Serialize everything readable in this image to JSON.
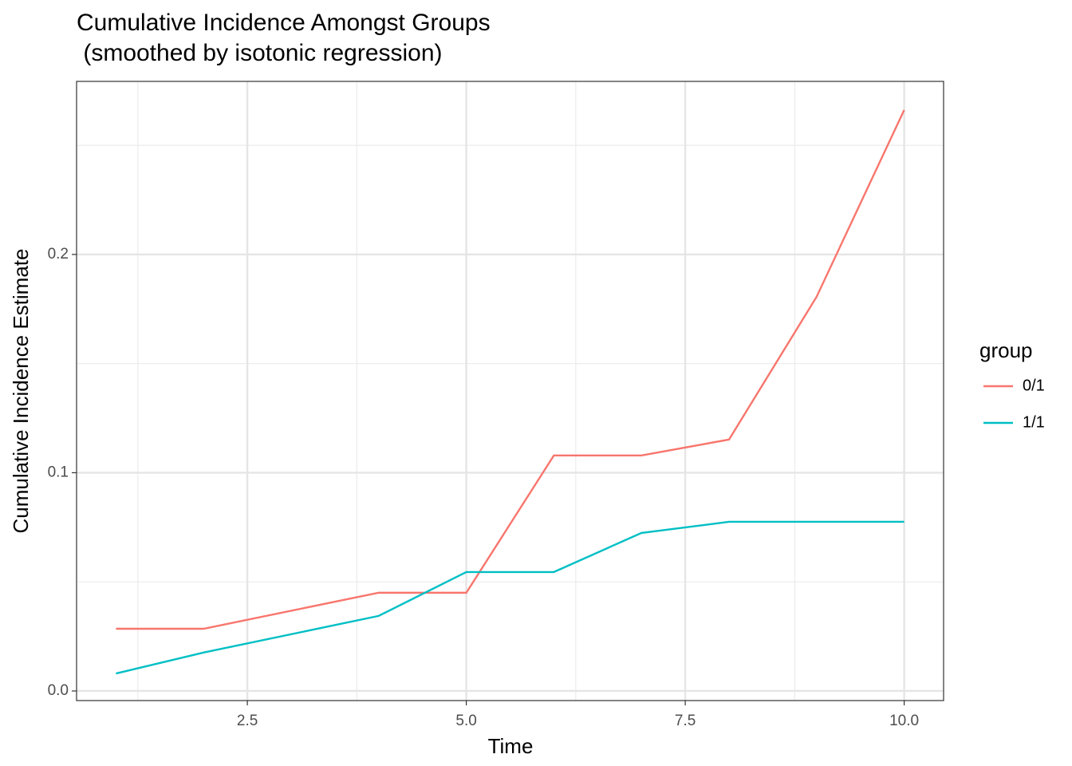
{
  "chart_data": {
    "type": "line",
    "title": "Cumulative Incidence Amongst Groups",
    "subtitle": " (smoothed by isotonic regression)",
    "x_label": "Time",
    "y_label": "Cumulative Incidence Estimate",
    "x": [
      1,
      2,
      4,
      5,
      6,
      7,
      8,
      9,
      10
    ],
    "series": [
      {
        "name": "0/1",
        "color": "#F8766D",
        "values": [
          0.0285,
          0.0285,
          0.045,
          0.045,
          0.1079,
          0.1079,
          0.1152,
          0.1806,
          0.2662
        ]
      },
      {
        "name": "1/1",
        "color": "#00BFC4",
        "values": [
          0.008,
          0.0176,
          0.0344,
          0.0545,
          0.0545,
          0.0724,
          0.0775,
          0.0775,
          0.0775
        ]
      }
    ],
    "xlim": [
      0.55,
      10.45
    ],
    "ylim": [
      -0.0044,
      0.2793
    ],
    "xticks": [
      2.5,
      {
        "value": 5,
        "label": "5.0"
      },
      7.5,
      {
        "value": 10,
        "label": "10.0"
      }
    ],
    "yticks": [
      {
        "value": 0,
        "label": "0.0"
      },
      {
        "value": 0.1,
        "label": "0.1"
      },
      {
        "value": 0.2,
        "label": "0.2"
      }
    ],
    "x_minor_grid": [
      1.25,
      3.75,
      6.25,
      8.75
    ],
    "y_minor_grid": [
      0.05,
      0.15,
      0.25
    ],
    "grid": true,
    "legend_title": "group",
    "legend_position": "right"
  }
}
